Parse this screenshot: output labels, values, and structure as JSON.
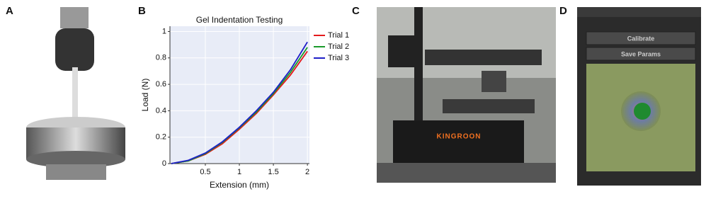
{
  "panels": {
    "a": {
      "label": "A"
    },
    "b": {
      "label": "B"
    },
    "c": {
      "label": "C",
      "brand": "KINGROON"
    },
    "d": {
      "label": "D",
      "buttons": [
        "Calibrate",
        "Save Params"
      ]
    }
  },
  "chart_data": {
    "type": "line",
    "title": "Gel Indentation Testing",
    "xlabel": "Extension (mm)",
    "ylabel": "Load (N)",
    "x": [
      0,
      0.25,
      0.5,
      0.75,
      1,
      1.25,
      1.5,
      1.75,
      2
    ],
    "series": [
      {
        "name": "Trial 1",
        "color": "#e41a1c",
        "values": [
          0,
          0.02,
          0.07,
          0.15,
          0.26,
          0.38,
          0.52,
          0.67,
          0.85
        ]
      },
      {
        "name": "Trial 2",
        "color": "#1a9a2a",
        "values": [
          0,
          0.02,
          0.075,
          0.16,
          0.27,
          0.39,
          0.53,
          0.69,
          0.88
        ]
      },
      {
        "name": "Trial 3",
        "color": "#1f1fc8",
        "values": [
          0,
          0.025,
          0.08,
          0.165,
          0.275,
          0.4,
          0.54,
          0.71,
          0.92
        ]
      }
    ],
    "xlim": [
      -0.02,
      2.03
    ],
    "ylim": [
      0,
      1.04
    ],
    "xticks": [
      0.5,
      1,
      1.5,
      2
    ],
    "yticks": [
      0,
      0.2,
      0.4,
      0.6,
      0.8,
      1
    ],
    "grid": true,
    "legend": "outside-right"
  }
}
